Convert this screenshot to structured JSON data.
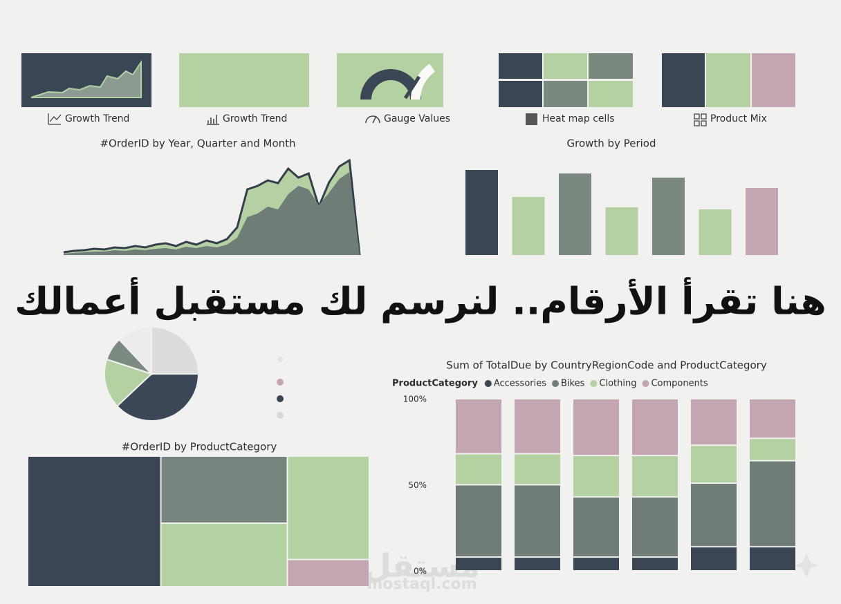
{
  "thumbnails": [
    {
      "label": "Growth Trend"
    },
    {
      "label": "Growth Trend"
    },
    {
      "label": "Gauge Values"
    },
    {
      "label": "Heat map cells"
    },
    {
      "label": "Product Mix"
    }
  ],
  "headline": "هنا تقرأ الأرقام.. لنرسم لك مستقبل أعمالك",
  "watermark": {
    "arabic": "مستقل",
    "latin": "mostaql.com"
  },
  "chart_data": [
    {
      "type": "area",
      "title": "#OrderID by Year, Quarter and Month",
      "series": [
        {
          "color": "#b5d1a4",
          "values": [
            4,
            6,
            7,
            9,
            8,
            11,
            10,
            13,
            11,
            15,
            17,
            13,
            19,
            15,
            21,
            17,
            23,
            40,
            95,
            100,
            108,
            104,
            125,
            112,
            118,
            70,
            105,
            128,
            137,
            0
          ]
        },
        {
          "color": "#6f7d76",
          "values": [
            2,
            3,
            4,
            5,
            5,
            7,
            6,
            8,
            7,
            9,
            10,
            8,
            12,
            10,
            13,
            11,
            15,
            25,
            55,
            60,
            70,
            66,
            88,
            100,
            95,
            72,
            90,
            110,
            120,
            0
          ]
        }
      ],
      "line_color": "#343f4c"
    },
    {
      "type": "bar",
      "title": "Growth by Period",
      "values": [
        123,
        84,
        118,
        69,
        112,
        66,
        97
      ],
      "colors": [
        "#3a4654",
        "#b3d1a1",
        "#7b8880",
        "#b3d1a1",
        "#7b8880",
        "#b3d1a1",
        "#c4a5b2"
      ]
    },
    {
      "type": "pie",
      "values": [
        25,
        38,
        17,
        8,
        12
      ],
      "colors": [
        "#dcdcda",
        "#3b4656",
        "#b3d1a1",
        "#7d8a82",
        "#ececea"
      ]
    },
    {
      "type": "treemap",
      "title": "#OrderID by ProductCategory",
      "values": [
        39,
        19,
        18,
        19,
        5
      ],
      "colors": [
        "#3a4654",
        "#77847e",
        "#b3d1a1",
        "#b3d1a1",
        "#c4a5b2"
      ]
    },
    {
      "type": "stacked-bar-100",
      "title": "Sum of TotalDue by CountryRegionCode and ProductCategory",
      "legend_title": "ProductCategory",
      "categories": [
        null,
        null,
        null,
        null,
        null,
        null
      ],
      "ylim": [
        0,
        100
      ],
      "yticks": [
        {
          "value": 0,
          "label": "0%"
        },
        {
          "value": 50,
          "label": "50%"
        },
        {
          "value": 100,
          "label": "100%"
        }
      ],
      "series": [
        {
          "name": "Accessories",
          "color": "#3a4654",
          "values": [
            8,
            8,
            8,
            8,
            14,
            14
          ]
        },
        {
          "name": "Bikes",
          "color": "#6f7d76",
          "values": [
            42,
            42,
            35,
            35,
            37,
            50
          ]
        },
        {
          "name": "Clothing",
          "color": "#b3d1a1",
          "values": [
            18,
            18,
            24,
            24,
            22,
            13
          ]
        },
        {
          "name": "Components",
          "color": "#c4a5b2",
          "values": [
            32,
            32,
            33,
            33,
            27,
            23
          ]
        }
      ]
    }
  ]
}
